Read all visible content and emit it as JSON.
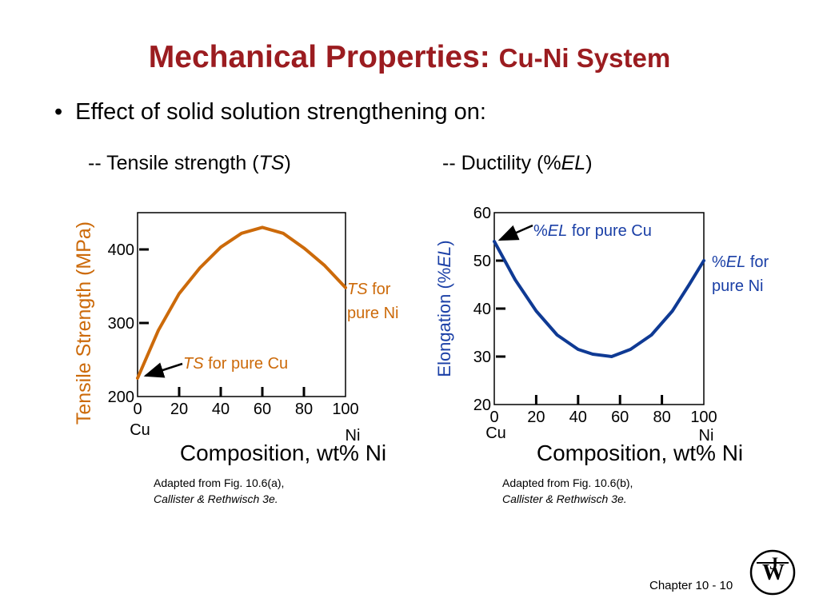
{
  "slide": {
    "title_main": "Mechanical Properties:",
    "title_sub": "Cu-Ni System",
    "bullet": "Effect of solid solution strengthening on:",
    "section_left_prefix": "-- Tensile strength (",
    "section_left_abbr": "TS",
    "section_left_suffix": ")",
    "section_right_prefix": "-- Ductility (%",
    "section_right_abbr": "EL",
    "section_right_suffix": ")",
    "caption_left_line1": "Adapted from Fig. 10.6(a),",
    "caption_left_line2": "Callister & Rethwisch 3e.",
    "caption_right_line1": "Adapted from Fig. 10.6(b),",
    "caption_right_line2": "Callister & Rethwisch 3e.",
    "footer": "Chapter 10 -  10",
    "colors": {
      "title": "#9b1c20",
      "ts_curve": "#cc6a0a",
      "el_curve": "#0f3a94",
      "annotation_blue": "#1a3fa6"
    },
    "logo_icon": "wiley-wj-seal"
  },
  "chart_data": [
    {
      "type": "line",
      "xlabel": "Composition, wt% Ni",
      "ylabel": "Tensile Strength (MPa)",
      "xlim": [
        0,
        100
      ],
      "ylim": [
        200,
        450
      ],
      "x_ticks": [
        "0",
        "20",
        "40",
        "60",
        "80",
        "100"
      ],
      "y_ticks": [
        "200",
        "300",
        "400"
      ],
      "x_end_labels": [
        "Cu",
        "Ni"
      ],
      "series": [
        {
          "x": [
            0,
            10,
            20,
            30,
            40,
            50,
            60,
            70,
            80,
            90,
            100
          ],
          "y": [
            225,
            290,
            340,
            375,
            403,
            422,
            430,
            422,
            402,
            378,
            348
          ]
        }
      ],
      "annotations": [
        {
          "emph": "TS",
          "text": " for pure Cu"
        },
        {
          "emph": "TS",
          "text": " for",
          "line2": "pure Ni"
        }
      ]
    },
    {
      "type": "line",
      "xlabel": "Composition, wt% Ni",
      "ylabel_prefix": "Elongation (%",
      "ylabel_emph": "EL",
      "ylabel_suffix": ")",
      "xlim": [
        0,
        100
      ],
      "ylim": [
        20,
        60
      ],
      "x_ticks": [
        "0",
        "20",
        "40",
        "60",
        "80",
        "100"
      ],
      "y_ticks": [
        "20",
        "30",
        "40",
        "50",
        "60"
      ],
      "x_end_labels": [
        "Cu",
        "Ni"
      ],
      "series": [
        {
          "x": [
            0,
            10,
            20,
            30,
            40,
            47,
            56,
            65,
            75,
            85,
            93,
            100
          ],
          "y": [
            54,
            46,
            39.5,
            34.5,
            31.5,
            30.5,
            30,
            31.5,
            34.5,
            39.5,
            45,
            50
          ]
        }
      ],
      "annotations": [
        {
          "prefix": "%",
          "emph": "EL",
          "text": " for pure Cu"
        },
        {
          "prefix": "%",
          "emph": "EL",
          "text": " for",
          "line2": "pure Ni"
        }
      ]
    }
  ]
}
